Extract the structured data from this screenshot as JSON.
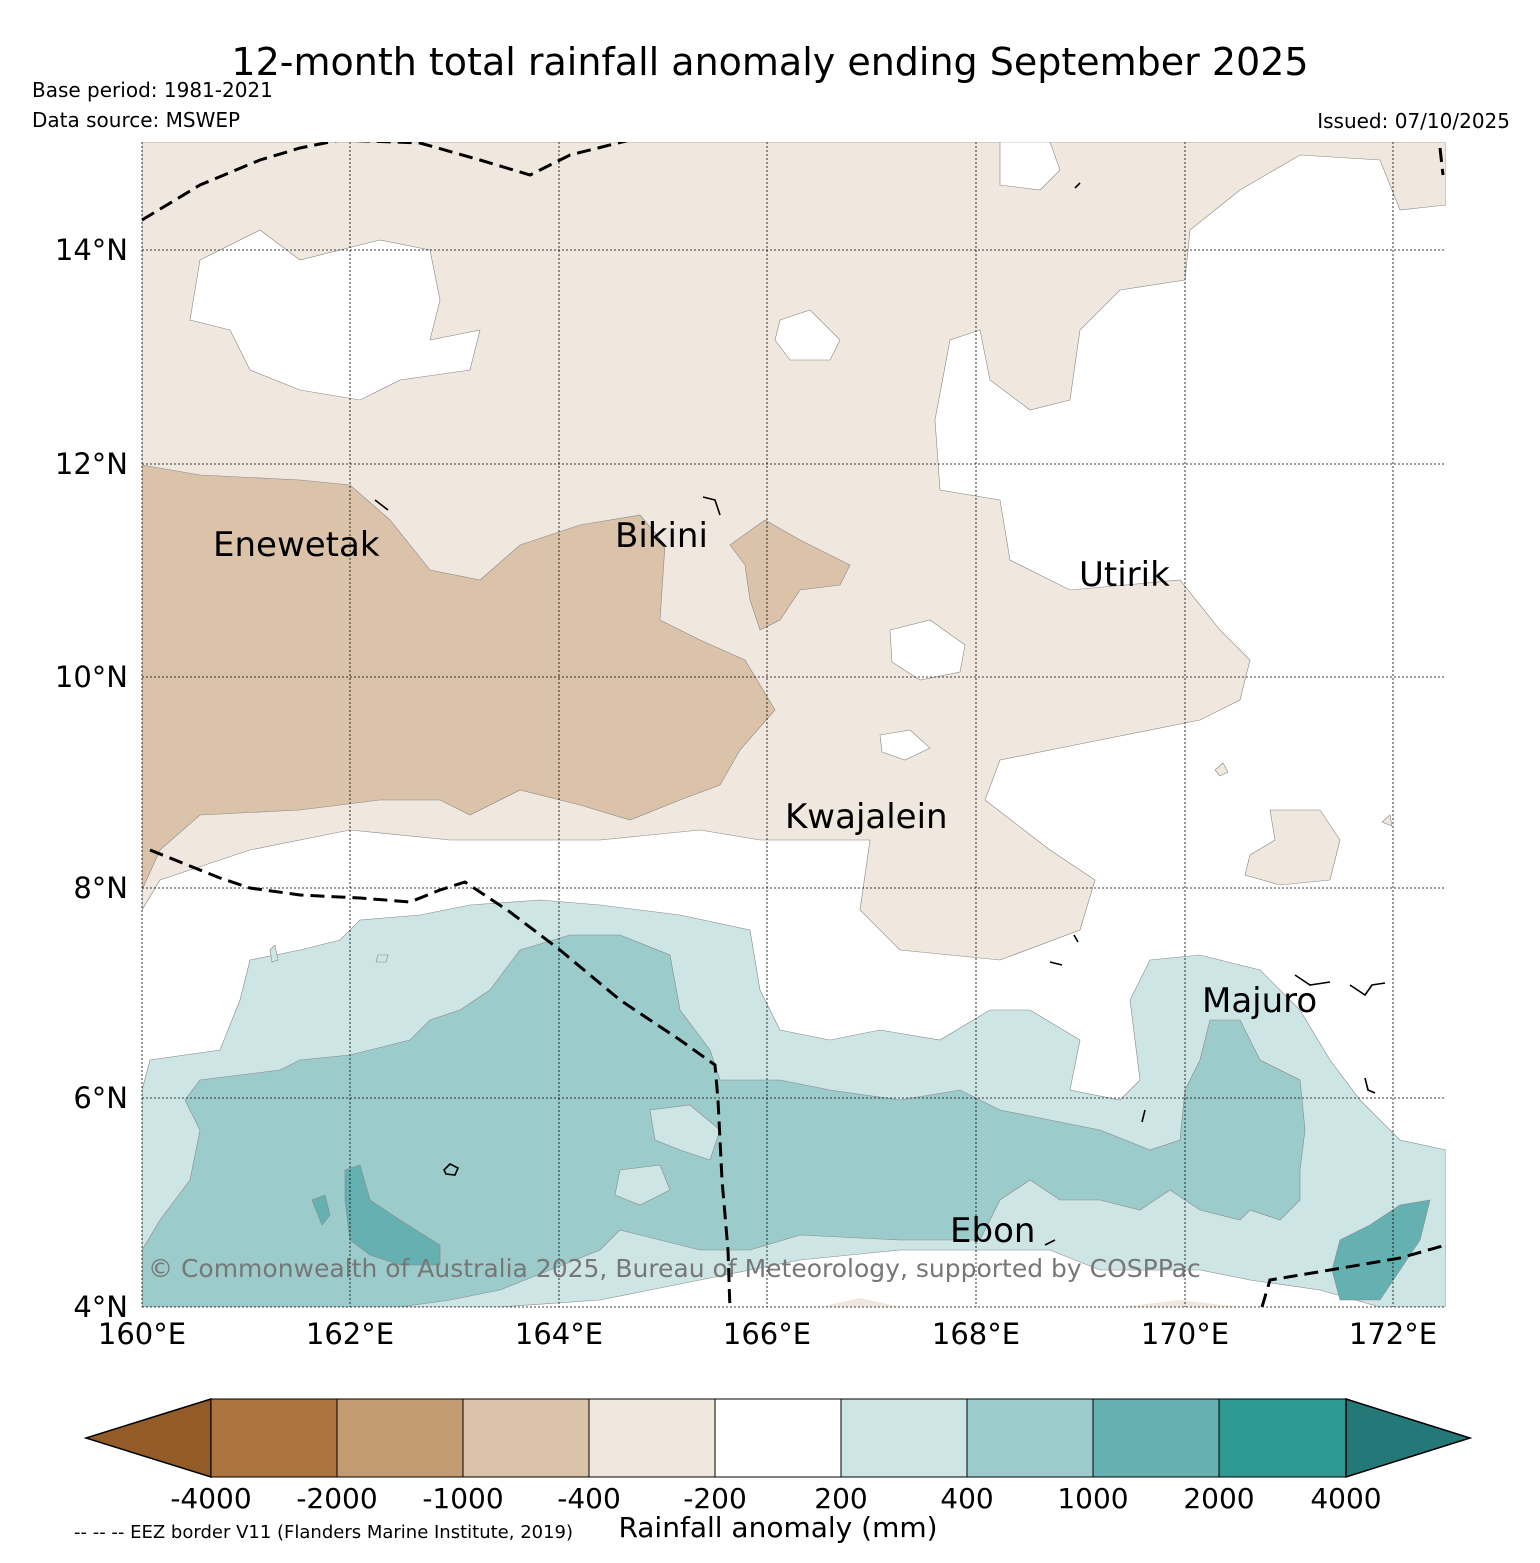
{
  "title": "12-month total rainfall anomaly ending September 2025",
  "base_period": "Base period: 1981-2021",
  "data_source": "Data source: MSWEP",
  "issued": "Issued: 07/10/2025",
  "copyright": "© Commonwealth of Australia 2025, Bureau of Meteorology, supported by COSPPac",
  "eez_note": "-- -- -- EEZ border V11 (Flanders Marine Institute, 2019)",
  "lat_ticks": [
    "14°N",
    "12°N",
    "10°N",
    "8°N",
    "6°N",
    "4°N"
  ],
  "lon_ticks": [
    "160°E",
    "162°E",
    "164°E",
    "166°E",
    "168°E",
    "170°E",
    "172°E"
  ],
  "places": {
    "enewetak": "Enewetak",
    "bikini": "Bikini",
    "utirik": "Utirik",
    "kwajalein": "Kwajalein",
    "majuro": "Majuro",
    "ebon": "Ebon"
  },
  "colorbar": {
    "label": "Rainfall anomaly (mm)",
    "ticks": [
      "-4000",
      "-2000",
      "-1000",
      "-400",
      "-200",
      "200",
      "400",
      "1000",
      "2000",
      "4000"
    ],
    "colors": [
      "#935b27",
      "#ac753f",
      "#c39b72",
      "#dbc3aa",
      "#f0e7de",
      "#ffffff",
      "#cde5e5",
      "#9ccbcb",
      "#65b1b1",
      "#2e9893",
      "#257878"
    ]
  }
}
